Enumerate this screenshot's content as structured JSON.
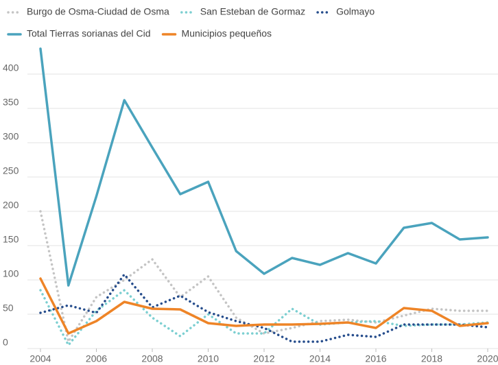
{
  "chart_data": {
    "type": "line",
    "x": [
      2004,
      2005,
      2006,
      2007,
      2008,
      2009,
      2010,
      2011,
      2012,
      2013,
      2014,
      2015,
      2016,
      2017,
      2018,
      2019,
      2020
    ],
    "xlim": [
      2004,
      2020
    ],
    "xticks": [
      2004,
      2006,
      2008,
      2010,
      2012,
      2014,
      2016,
      2018,
      2020
    ],
    "ylim": [
      0,
      440
    ],
    "yticks": [
      0,
      50,
      100,
      150,
      200,
      250,
      300,
      350,
      400
    ],
    "grid": true,
    "series": [
      {
        "name": "Burgo de Osma-Ciudad de Osma",
        "color": "#c4c4c4",
        "style": "dotted",
        "values": [
          200,
          10,
          75,
          100,
          130,
          75,
          105,
          45,
          22,
          30,
          40,
          42,
          38,
          48,
          58,
          55,
          55
        ]
      },
      {
        "name": "San Esteban de Gormaz",
        "color": "#7ccfd1",
        "style": "dotted",
        "values": [
          85,
          5,
          55,
          85,
          45,
          18,
          50,
          22,
          22,
          58,
          35,
          38,
          40,
          33,
          35,
          35,
          38
        ]
      },
      {
        "name": "Golmayo",
        "color": "#264d8c",
        "style": "dotted",
        "values": [
          52,
          63,
          52,
          108,
          60,
          77,
          53,
          40,
          30,
          10,
          10,
          20,
          17,
          35,
          35,
          35,
          31
        ]
      },
      {
        "name": "Total Tierras sorianas del Cid",
        "color": "#4aa3bd",
        "style": "solid",
        "values": [
          437,
          92,
          222,
          362,
          293,
          225,
          243,
          142,
          109,
          132,
          122,
          139,
          124,
          176,
          183,
          159,
          162
        ]
      },
      {
        "name": "Municipios pequeños",
        "color": "#ee8427",
        "style": "solid",
        "values": [
          102,
          22,
          40,
          68,
          58,
          57,
          37,
          33,
          35,
          35,
          36,
          38,
          30,
          59,
          55,
          33,
          37
        ]
      }
    ]
  }
}
